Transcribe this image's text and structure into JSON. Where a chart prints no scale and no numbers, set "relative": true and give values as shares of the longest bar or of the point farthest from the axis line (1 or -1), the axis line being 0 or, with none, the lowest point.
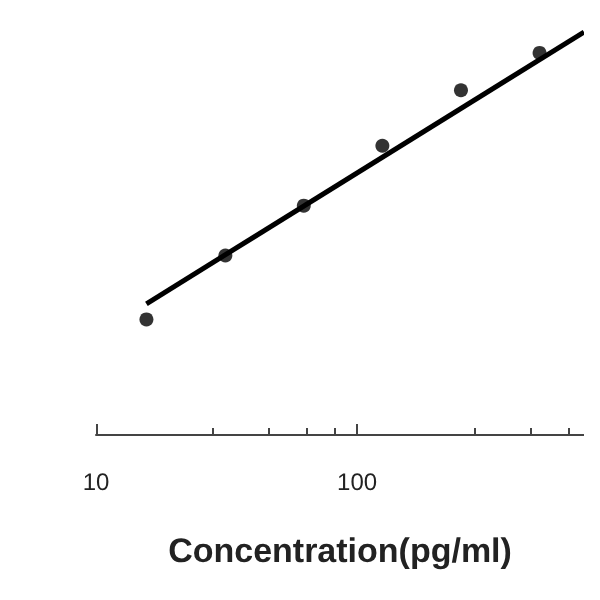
{
  "chart_data": {
    "type": "scatter",
    "xlabel": "Concentration(pg/ml)",
    "relative": true,
    "log": "x",
    "xlim": [
      10,
      740
    ],
    "xticks": [
      10,
      100
    ],
    "grid": false,
    "series": [
      {
        "color": "#000000",
        "marker": "circle",
        "x": [
          15.6,
          31.3,
          62.5,
          125,
          250,
          500
        ],
        "values": [
          0.285,
          0.444,
          0.568,
          0.717,
          0.855,
          0.948
        ]
      },
      {
        "type": "line",
        "color": "#000000",
        "marker": "none",
        "line_style": "solid",
        "x": [
          15.6,
          740
        ],
        "values": [
          0.324,
          1
        ]
      }
    ]
  }
}
